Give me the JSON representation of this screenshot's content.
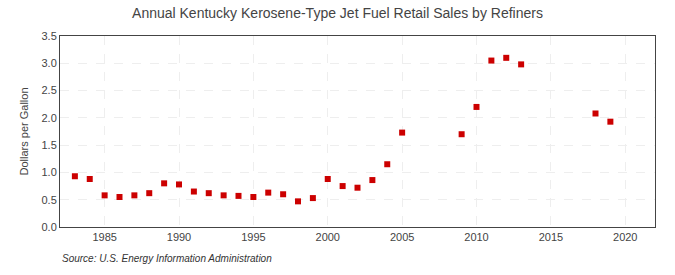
{
  "chart_data": {
    "type": "scatter",
    "title": "Annual Kentucky Kerosene-Type Jet Fuel Retail Sales by Refiners",
    "ylabel": "Dollars per Gallon",
    "annotations": [
      "Source: U.S. Energy Information Administration"
    ],
    "x": [
      1983,
      1984,
      1985,
      1986,
      1987,
      1988,
      1989,
      1990,
      1991,
      1992,
      1993,
      1994,
      1995,
      1996,
      1997,
      1998,
      1999,
      2000,
      2001,
      2002,
      2003,
      2004,
      2005,
      2009,
      2010,
      2011,
      2012,
      2013,
      2018,
      2019
    ],
    "values": [
      0.93,
      0.88,
      0.58,
      0.55,
      0.58,
      0.62,
      0.8,
      0.78,
      0.65,
      0.62,
      0.58,
      0.57,
      0.55,
      0.63,
      0.6,
      0.47,
      0.53,
      0.88,
      0.75,
      0.72,
      0.86,
      1.15,
      1.73,
      1.7,
      2.2,
      3.05,
      3.1,
      2.98,
      2.08,
      1.93
    ],
    "color": "#cc0000",
    "marker": "square",
    "xlim": [
      1982,
      2022
    ],
    "xticks": [
      1985,
      1990,
      1995,
      2000,
      2005,
      2010,
      2015,
      2020
    ],
    "ylim": [
      0.0,
      3.5
    ],
    "yticks": [
      {
        "value": 0.0,
        "label": "0.0"
      },
      0.5,
      {
        "value": 1.0,
        "label": "1.0"
      },
      1.5,
      {
        "value": 2.0,
        "label": "2.0"
      },
      2.5,
      {
        "value": 3.0,
        "label": "3.0"
      },
      3.5
    ],
    "grid": true
  }
}
